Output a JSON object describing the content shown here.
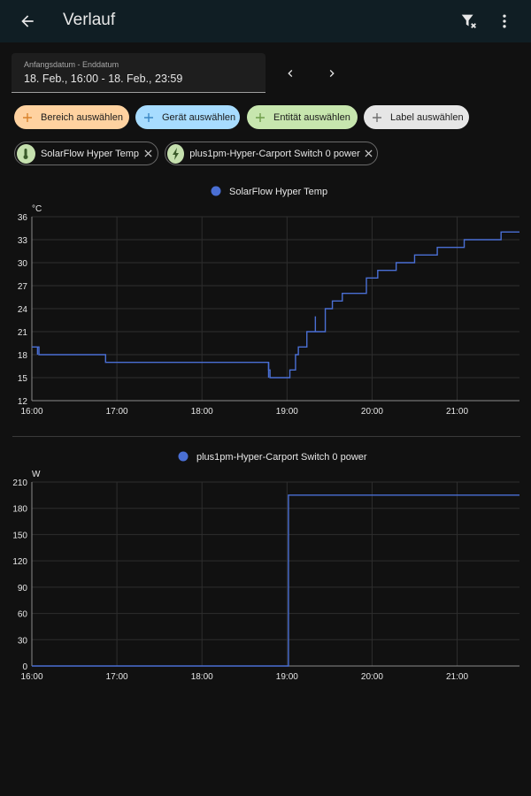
{
  "header": {
    "title": "Verlauf",
    "back_icon": "arrow-left-icon",
    "filter_icon": "filter-remove-icon",
    "more_icon": "dots-vertical-icon",
    "background": "#101e24"
  },
  "date_picker": {
    "label": "Anfangsdatum - Enddatum",
    "value": "18. Feb., 16:00 - 18. Feb., 23:59"
  },
  "target_chips": [
    {
      "label": "Bereich auswählen",
      "color": "#ffd2a0"
    },
    {
      "label": "Gerät auswählen",
      "color": "#a7dcff"
    },
    {
      "label": "Entität auswählen",
      "color": "#c7e6ae"
    },
    {
      "label": "Label auswählen",
      "color": "#e6e6e6"
    }
  ],
  "selected_entities": [
    {
      "label": "SolarFlow Hyper Temp",
      "icon": "thermometer-icon"
    },
    {
      "label": "plus1pm-Hyper-Carport Switch 0 power",
      "icon": "flash-icon"
    }
  ],
  "chart_data": [
    {
      "type": "line",
      "step": true,
      "legend": "SolarFlow Hyper Temp",
      "ylabel": "°C",
      "series_color": "#4a6fd4",
      "xticks": [
        "16:00",
        "17:00",
        "18:00",
        "19:00",
        "20:00",
        "21:00"
      ],
      "yticks": [
        12,
        15,
        18,
        21,
        24,
        27,
        30,
        33,
        36
      ],
      "ylim": [
        12,
        36
      ],
      "xlim": [
        "16:00",
        "21:44"
      ],
      "grid": true,
      "points": [
        [
          "16:00",
          19
        ],
        [
          "16:05",
          18
        ],
        [
          "16:52",
          17
        ],
        [
          "18:47",
          16
        ],
        [
          "18:48",
          15
        ],
        [
          "19:02",
          16
        ],
        [
          "19:06",
          18
        ],
        [
          "19:08",
          19
        ],
        [
          "19:14",
          21
        ],
        [
          "19:19",
          21
        ],
        [
          "19:22",
          21
        ],
        [
          "19:27",
          24
        ],
        [
          "19:32",
          25
        ],
        [
          "19:39",
          26
        ],
        [
          "19:56",
          28
        ],
        [
          "20:04",
          29
        ],
        [
          "20:17",
          30
        ],
        [
          "20:30",
          31
        ],
        [
          "20:46",
          32
        ],
        [
          "21:05",
          33
        ],
        [
          "21:31",
          34
        ],
        [
          "21:44",
          34
        ]
      ],
      "spikes": [
        [
          "16:04",
          19,
          18
        ],
        [
          "18:47",
          17,
          15
        ],
        [
          "19:20",
          23,
          21
        ]
      ]
    },
    {
      "type": "line",
      "step": true,
      "legend": "plus1pm-Hyper-Carport Switch 0 power",
      "ylabel": "W",
      "series_color": "#4a6fd4",
      "xticks": [
        "16:00",
        "17:00",
        "18:00",
        "19:00",
        "20:00",
        "21:00"
      ],
      "yticks": [
        0,
        30,
        60,
        90,
        120,
        150,
        180,
        210
      ],
      "ylim": [
        0,
        210
      ],
      "xlim": [
        "16:00",
        "21:44"
      ],
      "grid": true,
      "points": [
        [
          "16:00",
          0
        ],
        [
          "19:01",
          0
        ],
        [
          "19:01",
          195
        ],
        [
          "21:44",
          195
        ]
      ]
    }
  ]
}
